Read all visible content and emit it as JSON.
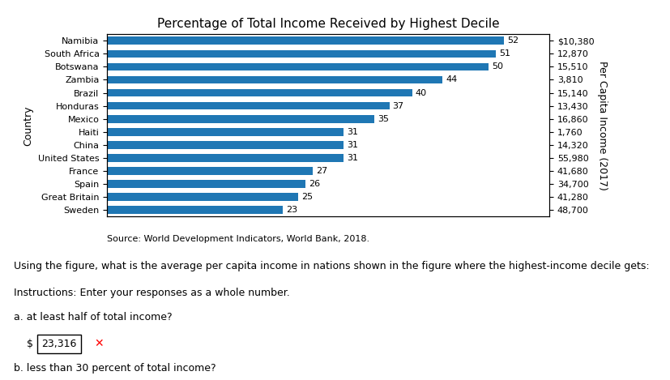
{
  "chart_data": {
    "type": "bar",
    "orientation": "horizontal",
    "title": "Percentage of Total Income Received by Highest Decile",
    "ylabel": "Country",
    "y2label": "Per Capita Income (2017)",
    "categories": [
      "Namibia",
      "South Africa",
      "Botswana",
      "Zambia",
      "Brazil",
      "Honduras",
      "Mexico",
      "Haiti",
      "China",
      "United States",
      "France",
      "Spain",
      "Great Britain",
      "Sweden"
    ],
    "values": [
      52,
      51,
      50,
      44,
      40,
      37,
      35,
      31,
      31,
      31,
      27,
      26,
      25,
      23
    ],
    "y2_labels": [
      "$10,380",
      "12,870",
      "15,510",
      "3,810",
      "15,140",
      "13,430",
      "16,860",
      "1,760",
      "14,320",
      "55,980",
      "41,680",
      "34,700",
      "41,280",
      "48,700"
    ],
    "xlim": [
      0,
      58
    ],
    "xticks": [],
    "tick_labels": "y",
    "data_labels": true,
    "annotations": [
      "Source: World Development Indicators, World Bank, 2018.",
      "Using the figure, what is the average per capita income in nations shown in the figure where the highest-income decile gets:",
      "Instructions: Enter your responses as a whole number.",
      "a. at least half of total income?",
      "b. less than 30 percent of total income?"
    ],
    "answer": [
      "$",
      "23,316",
      "✕"
    ]
  }
}
